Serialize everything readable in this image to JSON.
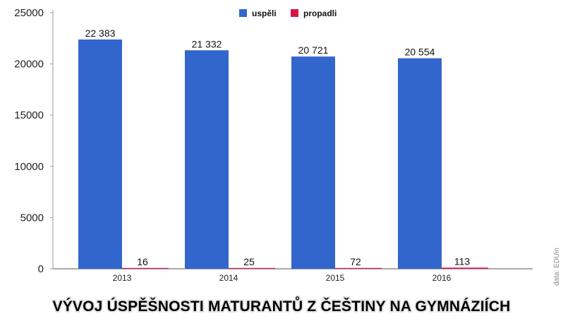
{
  "chart_data": {
    "type": "bar",
    "title": "VÝVOJ ÚSPĚŠNOSTI MATURANTŮ Z ČEŠTINY NA GYMNÁZIÍCH",
    "source": "data: EDUin",
    "categories": [
      "2013",
      "2014",
      "2015",
      "2016"
    ],
    "series": [
      {
        "name": "uspěli",
        "color": "#3366cc",
        "values": [
          22383,
          21332,
          20721,
          20554
        ],
        "labels": [
          "22 383",
          "21 332",
          "20 721",
          "20 554"
        ]
      },
      {
        "name": "propadli",
        "color": "#d6164a",
        "values": [
          16,
          25,
          72,
          113
        ],
        "labels": [
          "16",
          "25",
          "72",
          "113"
        ]
      }
    ],
    "ylim": [
      0,
      25000
    ],
    "yticks": [
      0,
      5000,
      10000,
      15000,
      20000,
      25000
    ],
    "xlabel": "",
    "ylabel": "",
    "grid": false,
    "legend_position": "top-center"
  }
}
